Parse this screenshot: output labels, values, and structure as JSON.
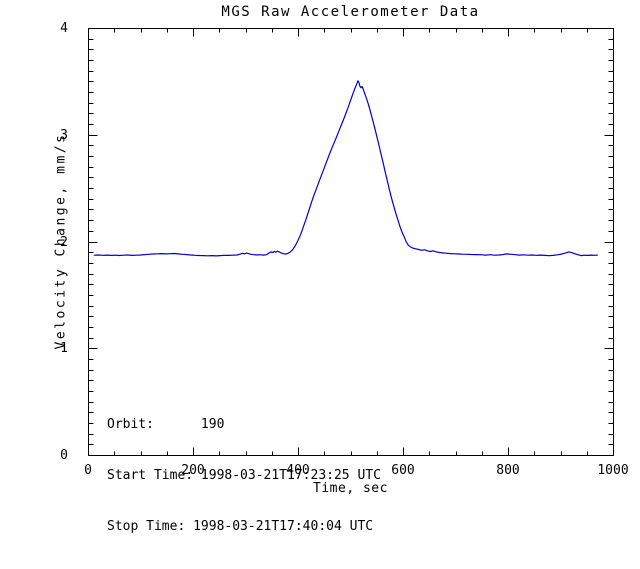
{
  "chart_data": {
    "type": "line",
    "title": "MGS Raw Accelerometer Data",
    "xlabel": "Time, sec",
    "ylabel": "Velocity Change, mm/s",
    "xlim": [
      0,
      1000
    ],
    "ylim": [
      0,
      4
    ],
    "x_ticks": [
      0,
      200,
      400,
      600,
      800,
      1000
    ],
    "y_ticks": [
      0,
      1,
      2,
      3,
      4
    ],
    "x_minor_step": 50,
    "y_minor_step": 0.1,
    "grid": false,
    "legend_position": "none",
    "line_color": "#0000cc",
    "axis_color": "#000000",
    "background_color": "#ffffff",
    "series": [
      {
        "name": "velocity_change_mm_s",
        "points": [
          [
            12,
            1.872
          ],
          [
            20,
            1.874
          ],
          [
            28,
            1.871
          ],
          [
            36,
            1.873
          ],
          [
            44,
            1.87
          ],
          [
            52,
            1.872
          ],
          [
            60,
            1.869
          ],
          [
            68,
            1.872
          ],
          [
            76,
            1.874
          ],
          [
            84,
            1.87
          ],
          [
            92,
            1.872
          ],
          [
            100,
            1.874
          ],
          [
            108,
            1.877
          ],
          [
            116,
            1.88
          ],
          [
            124,
            1.883
          ],
          [
            132,
            1.885
          ],
          [
            140,
            1.887
          ],
          [
            148,
            1.884
          ],
          [
            156,
            1.886
          ],
          [
            164,
            1.888
          ],
          [
            172,
            1.884
          ],
          [
            180,
            1.88
          ],
          [
            188,
            1.877
          ],
          [
            196,
            1.874
          ],
          [
            204,
            1.871
          ],
          [
            212,
            1.869
          ],
          [
            220,
            1.868
          ],
          [
            228,
            1.866
          ],
          [
            236,
            1.868
          ],
          [
            244,
            1.865
          ],
          [
            252,
            1.868
          ],
          [
            260,
            1.871
          ],
          [
            268,
            1.87
          ],
          [
            276,
            1.872
          ],
          [
            284,
            1.874
          ],
          [
            290,
            1.882
          ],
          [
            294,
            1.889
          ],
          [
            298,
            1.884
          ],
          [
            302,
            1.891
          ],
          [
            306,
            1.886
          ],
          [
            310,
            1.88
          ],
          [
            316,
            1.876
          ],
          [
            322,
            1.874
          ],
          [
            328,
            1.876
          ],
          [
            334,
            1.873
          ],
          [
            340,
            1.876
          ],
          [
            345,
            1.893
          ],
          [
            349,
            1.903
          ],
          [
            352,
            1.896
          ],
          [
            355,
            1.908
          ],
          [
            358,
            1.901
          ],
          [
            361,
            1.91
          ],
          [
            364,
            1.903
          ],
          [
            368,
            1.893
          ],
          [
            372,
            1.886
          ],
          [
            376,
            1.882
          ],
          [
            380,
            1.887
          ],
          [
            385,
            1.901
          ],
          [
            390,
            1.925
          ],
          [
            395,
            1.962
          ],
          [
            400,
            2.01
          ],
          [
            405,
            2.065
          ],
          [
            410,
            2.135
          ],
          [
            415,
            2.205
          ],
          [
            420,
            2.28
          ],
          [
            425,
            2.355
          ],
          [
            430,
            2.43
          ],
          [
            435,
            2.495
          ],
          [
            440,
            2.56
          ],
          [
            445,
            2.625
          ],
          [
            450,
            2.69
          ],
          [
            455,
            2.755
          ],
          [
            460,
            2.82
          ],
          [
            465,
            2.88
          ],
          [
            470,
            2.94
          ],
          [
            475,
            3.0
          ],
          [
            480,
            3.06
          ],
          [
            485,
            3.12
          ],
          [
            490,
            3.185
          ],
          [
            495,
            3.25
          ],
          [
            500,
            3.32
          ],
          [
            504,
            3.375
          ],
          [
            508,
            3.43
          ],
          [
            511,
            3.465
          ],
          [
            514,
            3.505
          ],
          [
            516,
            3.49
          ],
          [
            518,
            3.455
          ],
          [
            520,
            3.44
          ],
          [
            522,
            3.452
          ],
          [
            524,
            3.43
          ],
          [
            526,
            3.4
          ],
          [
            530,
            3.345
          ],
          [
            534,
            3.285
          ],
          [
            538,
            3.215
          ],
          [
            542,
            3.14
          ],
          [
            546,
            3.065
          ],
          [
            550,
            2.985
          ],
          [
            554,
            2.905
          ],
          [
            558,
            2.82
          ],
          [
            562,
            2.74
          ],
          [
            566,
            2.655
          ],
          [
            570,
            2.57
          ],
          [
            574,
            2.49
          ],
          [
            578,
            2.41
          ],
          [
            582,
            2.34
          ],
          [
            586,
            2.27
          ],
          [
            590,
            2.205
          ],
          [
            594,
            2.145
          ],
          [
            598,
            2.09
          ],
          [
            602,
            2.045
          ],
          [
            606,
            2.0
          ],
          [
            610,
            1.965
          ],
          [
            614,
            1.95
          ],
          [
            618,
            1.94
          ],
          [
            624,
            1.932
          ],
          [
            630,
            1.925
          ],
          [
            636,
            1.918
          ],
          [
            641,
            1.923
          ],
          [
            646,
            1.913
          ],
          [
            652,
            1.906
          ],
          [
            657,
            1.913
          ],
          [
            662,
            1.904
          ],
          [
            668,
            1.898
          ],
          [
            675,
            1.893
          ],
          [
            682,
            1.89
          ],
          [
            690,
            1.887
          ],
          [
            698,
            1.885
          ],
          [
            706,
            1.883
          ],
          [
            714,
            1.881
          ],
          [
            722,
            1.88
          ],
          [
            730,
            1.878
          ],
          [
            740,
            1.877
          ],
          [
            750,
            1.875
          ],
          [
            758,
            1.873
          ],
          [
            766,
            1.876
          ],
          [
            774,
            1.872
          ],
          [
            782,
            1.874
          ],
          [
            790,
            1.877
          ],
          [
            798,
            1.884
          ],
          [
            806,
            1.88
          ],
          [
            814,
            1.876
          ],
          [
            822,
            1.873
          ],
          [
            830,
            1.875
          ],
          [
            838,
            1.872
          ],
          [
            846,
            1.874
          ],
          [
            854,
            1.871
          ],
          [
            862,
            1.873
          ],
          [
            870,
            1.87
          ],
          [
            878,
            1.867
          ],
          [
            886,
            1.87
          ],
          [
            894,
            1.875
          ],
          [
            902,
            1.882
          ],
          [
            910,
            1.893
          ],
          [
            916,
            1.903
          ],
          [
            921,
            1.896
          ],
          [
            927,
            1.886
          ],
          [
            933,
            1.876
          ],
          [
            939,
            1.868
          ],
          [
            945,
            1.872
          ],
          [
            952,
            1.87
          ],
          [
            958,
            1.873
          ],
          [
            964,
            1.871
          ],
          [
            970,
            1.873
          ]
        ]
      }
    ]
  },
  "annotation": {
    "orbit_line": "Orbit:      190",
    "start_line": "Start Time: 1998-03-21T17:23:25 UTC",
    "stop_line": "Stop Time: 1998-03-21T17:40:04 UTC"
  }
}
